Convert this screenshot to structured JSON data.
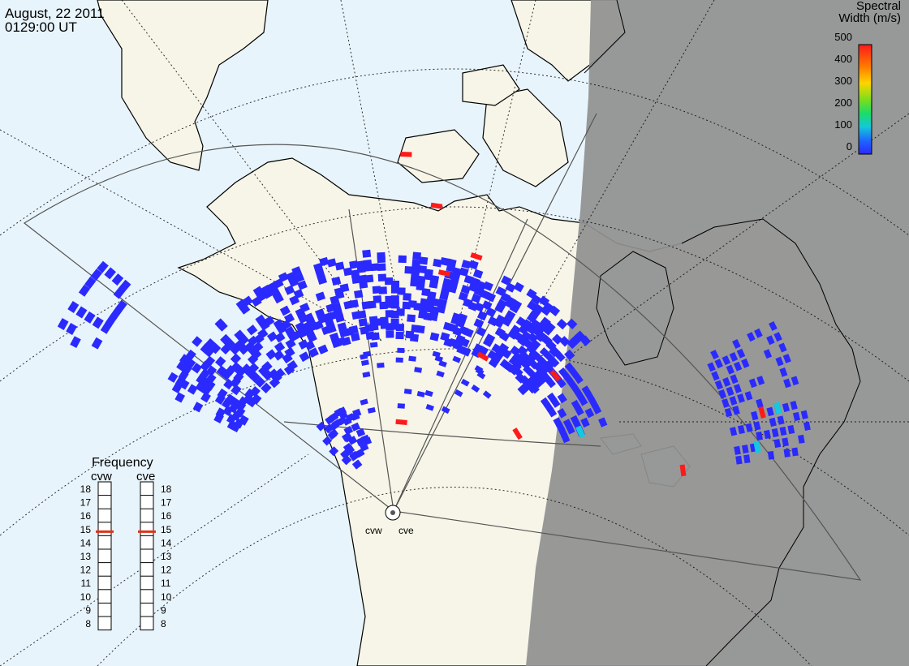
{
  "header": {
    "date": "August, 22 2011",
    "time": "0129:00 UT"
  },
  "colorbar": {
    "title_line1": "Spectral",
    "title_line2": "Width (m/s)",
    "ticks": [
      "500",
      "400",
      "300",
      "200",
      "100",
      "0"
    ],
    "gradient_colors": [
      "#ff1a1a",
      "#ff7a00",
      "#ffd400",
      "#7dde1a",
      "#1adc6a",
      "#14c8d8",
      "#1e64ff",
      "#2a2aff"
    ]
  },
  "frequency_panel": {
    "title": "Frequency",
    "radars": [
      {
        "label": "cvw",
        "current_mhz": 14.8
      },
      {
        "label": "cve",
        "current_mhz": 14.8
      }
    ],
    "scale": [
      "18",
      "17",
      "16",
      "15",
      "14",
      "13",
      "12",
      "11",
      "10",
      "9",
      "8"
    ]
  },
  "sites": [
    {
      "label": "cvw"
    },
    {
      "label": "cve"
    }
  ],
  "colors": {
    "ocean": "#e8f4fb",
    "land": "#f7f5e8",
    "night": "#909090",
    "echo_low": "#2a2aff",
    "echo_high": "#ff1a1a",
    "echo_mid": "#14c8e0"
  }
}
